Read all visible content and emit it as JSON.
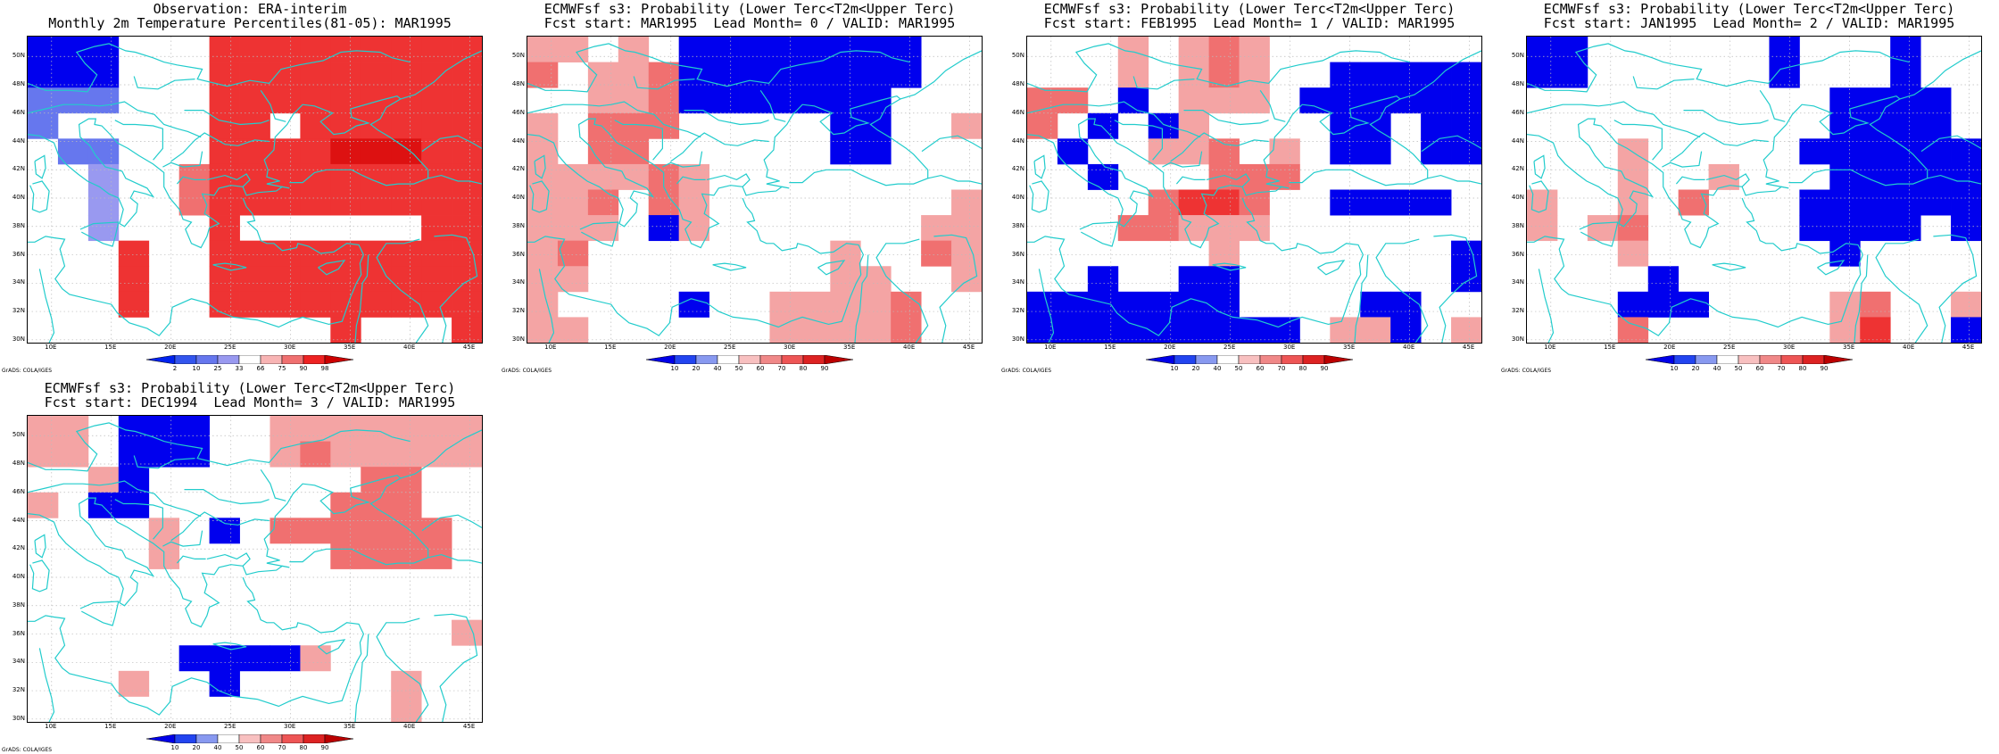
{
  "panels": [
    {
      "title1": "Observation: ERA-interim",
      "title2": "Monthly 2m Temperature Percentiles(81-05): MAR1995",
      "legend": "obs",
      "grid": [
        [
          1,
          1,
          1,
          0,
          0,
          0,
          7,
          7,
          7,
          7,
          7,
          7,
          7,
          7,
          7
        ],
        [
          1,
          1,
          1,
          0,
          0,
          0,
          7,
          7,
          7,
          7,
          7,
          7,
          7,
          7,
          7
        ],
        [
          2,
          2,
          2,
          0,
          0,
          0,
          7,
          7,
          7,
          7,
          7,
          7,
          7,
          7,
          7
        ],
        [
          2,
          0,
          0,
          0,
          0,
          0,
          7,
          7,
          0,
          7,
          7,
          7,
          7,
          7,
          7
        ],
        [
          0,
          2,
          2,
          0,
          0,
          0,
          7,
          7,
          7,
          7,
          8,
          8,
          8,
          7,
          7
        ],
        [
          0,
          0,
          3,
          0,
          0,
          6,
          7,
          7,
          7,
          7,
          7,
          7,
          7,
          7,
          7
        ],
        [
          0,
          0,
          3,
          0,
          0,
          6,
          7,
          7,
          7,
          7,
          7,
          7,
          7,
          7,
          7
        ],
        [
          0,
          0,
          3,
          0,
          0,
          0,
          7,
          0,
          0,
          0,
          0,
          0,
          0,
          7,
          7
        ],
        [
          0,
          0,
          0,
          7,
          0,
          0,
          7,
          7,
          7,
          7,
          7,
          7,
          7,
          7,
          7
        ],
        [
          0,
          0,
          0,
          7,
          0,
          0,
          7,
          7,
          7,
          7,
          7,
          7,
          7,
          7,
          7
        ],
        [
          0,
          0,
          0,
          7,
          0,
          0,
          7,
          7,
          7,
          7,
          7,
          7,
          7,
          7,
          7
        ],
        [
          0,
          0,
          0,
          0,
          0,
          0,
          0,
          0,
          0,
          0,
          7,
          0,
          0,
          0,
          7
        ]
      ]
    },
    {
      "title1": "ECMWFsf s3: Probability (Lower Terc<T2m<Upper Terc)",
      "title2": "Fcst start: MAR1995  Lead Month= 0 / VALID: MAR1995",
      "legend": "prob",
      "grid": [
        [
          5,
          5,
          0,
          5,
          0,
          1,
          1,
          1,
          1,
          1,
          1,
          1,
          1,
          0,
          0
        ],
        [
          6,
          0,
          5,
          5,
          6,
          1,
          1,
          1,
          1,
          1,
          1,
          1,
          1,
          0,
          0
        ],
        [
          0,
          0,
          5,
          5,
          6,
          1,
          1,
          1,
          1,
          1,
          1,
          1,
          0,
          0,
          0
        ],
        [
          5,
          0,
          6,
          6,
          6,
          0,
          0,
          0,
          0,
          0,
          1,
          1,
          0,
          0,
          5
        ],
        [
          5,
          0,
          6,
          6,
          0,
          0,
          0,
          0,
          0,
          0,
          1,
          1,
          0,
          0,
          0
        ],
        [
          5,
          5,
          5,
          5,
          6,
          5,
          0,
          0,
          0,
          0,
          0,
          0,
          0,
          0,
          0
        ],
        [
          5,
          5,
          6,
          0,
          6,
          5,
          0,
          0,
          0,
          0,
          0,
          0,
          0,
          0,
          5
        ],
        [
          5,
          5,
          5,
          0,
          1,
          5,
          0,
          0,
          0,
          0,
          0,
          0,
          0,
          5,
          5
        ],
        [
          5,
          6,
          0,
          0,
          0,
          0,
          0,
          0,
          0,
          0,
          5,
          0,
          0,
          6,
          5
        ],
        [
          5,
          5,
          0,
          0,
          0,
          0,
          0,
          0,
          0,
          0,
          5,
          5,
          0,
          0,
          5
        ],
        [
          5,
          0,
          0,
          0,
          0,
          1,
          0,
          0,
          5,
          5,
          5,
          5,
          6,
          0,
          0
        ],
        [
          5,
          5,
          0,
          0,
          0,
          0,
          0,
          0,
          5,
          5,
          5,
          5,
          6,
          0,
          0
        ]
      ]
    },
    {
      "title1": "ECMWFsf s3: Probability (Lower Terc<T2m<Upper Terc)",
      "title2": "Fcst start: FEB1995  Lead Month= 1 / VALID: MAR1995",
      "legend": "prob",
      "grid": [
        [
          0,
          0,
          0,
          5,
          0,
          5,
          6,
          5,
          0,
          0,
          0,
          0,
          0,
          0,
          0
        ],
        [
          0,
          0,
          0,
          5,
          0,
          5,
          6,
          5,
          0,
          0,
          1,
          1,
          1,
          1,
          1
        ],
        [
          6,
          6,
          0,
          1,
          0,
          5,
          5,
          5,
          0,
          1,
          1,
          1,
          1,
          1,
          1
        ],
        [
          6,
          0,
          1,
          0,
          1,
          5,
          0,
          0,
          0,
          0,
          1,
          1,
          0,
          1,
          1
        ],
        [
          0,
          1,
          0,
          0,
          5,
          5,
          6,
          0,
          5,
          0,
          1,
          1,
          0,
          1,
          1
        ],
        [
          0,
          0,
          1,
          0,
          0,
          0,
          6,
          6,
          6,
          0,
          0,
          0,
          0,
          0,
          0
        ],
        [
          0,
          0,
          0,
          0,
          6,
          7,
          7,
          6,
          0,
          0,
          1,
          1,
          1,
          1,
          0
        ],
        [
          0,
          0,
          0,
          6,
          6,
          5,
          5,
          5,
          0,
          0,
          0,
          0,
          0,
          0,
          0
        ],
        [
          0,
          0,
          0,
          0,
          0,
          0,
          5,
          0,
          0,
          0,
          0,
          0,
          0,
          0,
          1
        ],
        [
          0,
          0,
          1,
          0,
          0,
          1,
          1,
          0,
          0,
          0,
          0,
          0,
          0,
          0,
          1
        ],
        [
          1,
          1,
          1,
          1,
          1,
          1,
          1,
          0,
          0,
          0,
          0,
          1,
          1,
          0,
          0
        ],
        [
          1,
          1,
          1,
          1,
          1,
          1,
          1,
          1,
          1,
          0,
          5,
          5,
          1,
          0,
          5
        ]
      ]
    },
    {
      "title1": "ECMWFsf s3: Probability (Lower Terc<T2m<Upper Terc)",
      "title2": "Fcst start: JAN1995  Lead Month= 2 / VALID: MAR1995",
      "legend": "prob",
      "grid": [
        [
          1,
          1,
          0,
          0,
          0,
          0,
          0,
          0,
          1,
          0,
          0,
          0,
          1,
          0,
          0
        ],
        [
          1,
          1,
          0,
          0,
          0,
          0,
          0,
          0,
          1,
          0,
          0,
          0,
          1,
          0,
          0
        ],
        [
          0,
          0,
          0,
          0,
          0,
          0,
          0,
          0,
          0,
          0,
          1,
          1,
          1,
          1,
          0
        ],
        [
          0,
          0,
          0,
          0,
          0,
          0,
          0,
          0,
          0,
          0,
          1,
          1,
          1,
          1,
          0
        ],
        [
          0,
          0,
          0,
          5,
          0,
          0,
          0,
          0,
          0,
          1,
          1,
          1,
          1,
          1,
          1
        ],
        [
          0,
          0,
          0,
          5,
          0,
          0,
          5,
          0,
          0,
          0,
          1,
          1,
          1,
          1,
          1
        ],
        [
          5,
          0,
          0,
          5,
          0,
          6,
          0,
          0,
          0,
          1,
          1,
          1,
          1,
          1,
          1
        ],
        [
          5,
          0,
          5,
          6,
          0,
          0,
          0,
          0,
          0,
          1,
          1,
          1,
          1,
          0,
          1
        ],
        [
          0,
          0,
          0,
          5,
          0,
          0,
          0,
          0,
          0,
          0,
          1,
          0,
          0,
          0,
          0
        ],
        [
          0,
          0,
          0,
          0,
          1,
          0,
          0,
          0,
          0,
          0,
          0,
          0,
          0,
          0,
          0
        ],
        [
          0,
          0,
          0,
          1,
          1,
          1,
          0,
          0,
          0,
          0,
          5,
          6,
          0,
          0,
          5
        ],
        [
          0,
          0,
          0,
          6,
          0,
          0,
          0,
          0,
          0,
          0,
          5,
          7,
          0,
          0,
          1
        ]
      ]
    },
    {
      "title1": "ECMWFsf s3: Probability (Lower Terc<T2m<Upper Terc)",
      "title2": "Fcst start: DEC1994  Lead Month= 3 / VALID: MAR1995",
      "legend": "prob",
      "grid": [
        [
          5,
          5,
          0,
          1,
          1,
          1,
          0,
          0,
          5,
          5,
          5,
          5,
          5,
          5,
          5
        ],
        [
          5,
          5,
          0,
          1,
          1,
          1,
          0,
          0,
          5,
          6,
          5,
          5,
          5,
          5,
          5
        ],
        [
          0,
          0,
          5,
          1,
          0,
          0,
          0,
          0,
          0,
          0,
          0,
          6,
          6,
          0,
          0
        ],
        [
          5,
          0,
          1,
          1,
          0,
          0,
          0,
          0,
          0,
          0,
          6,
          6,
          6,
          0,
          0
        ],
        [
          0,
          0,
          0,
          0,
          5,
          0,
          1,
          0,
          6,
          6,
          6,
          6,
          6,
          6,
          0
        ],
        [
          0,
          0,
          0,
          0,
          5,
          0,
          0,
          0,
          0,
          0,
          6,
          6,
          6,
          6,
          0
        ],
        [
          0,
          0,
          0,
          0,
          0,
          0,
          0,
          0,
          0,
          0,
          0,
          0,
          0,
          0,
          0
        ],
        [
          0,
          0,
          0,
          0,
          0,
          0,
          0,
          0,
          0,
          0,
          0,
          0,
          0,
          0,
          0
        ],
        [
          0,
          0,
          0,
          0,
          0,
          0,
          0,
          0,
          0,
          0,
          0,
          0,
          0,
          0,
          5
        ],
        [
          0,
          0,
          0,
          0,
          0,
          1,
          1,
          1,
          1,
          5,
          0,
          0,
          0,
          0,
          0
        ],
        [
          0,
          0,
          0,
          5,
          0,
          0,
          1,
          0,
          0,
          0,
          0,
          0,
          5,
          0,
          0
        ],
        [
          0,
          0,
          0,
          0,
          0,
          0,
          0,
          0,
          0,
          0,
          0,
          0,
          5,
          0,
          0
        ]
      ]
    }
  ],
  "legends": {
    "obs": {
      "colors": [
        "#0022ee",
        "#3355ee",
        "#6677ee",
        "#9999f0",
        "#ffffff",
        "#f8b4b4",
        "#f07070",
        "#ee2222",
        "#cc0000"
      ],
      "labels": [
        "2",
        "10",
        "25",
        "33",
        "66",
        "75",
        "90",
        "98"
      ]
    },
    "prob": {
      "colors": [
        "#0000e8",
        "#2244f0",
        "#8899f0",
        "#ffffff",
        "#f8c0c0",
        "#f08888",
        "#ee5555",
        "#dd2222",
        "#bb0000"
      ],
      "labels": [
        "10",
        "20",
        "40",
        "50",
        "60",
        "70",
        "80",
        "90"
      ]
    }
  },
  "cell_colors": [
    "#ffffff",
    "#0000ee",
    "#6677ee",
    "#9999f0",
    "#c8c8f4",
    "#f4a4a4",
    "#f07070",
    "#ee3333",
    "#dd1111"
  ],
  "lat_labels": [
    "50N",
    "48N",
    "46N",
    "44N",
    "42N",
    "40N",
    "38N",
    "36N",
    "34N",
    "32N",
    "30N"
  ],
  "lon_labels": [
    "10E",
    "15E",
    "20E",
    "25E",
    "30E",
    "35E",
    "40E",
    "45E"
  ],
  "credit": "GrADS: COLA/IGES"
}
